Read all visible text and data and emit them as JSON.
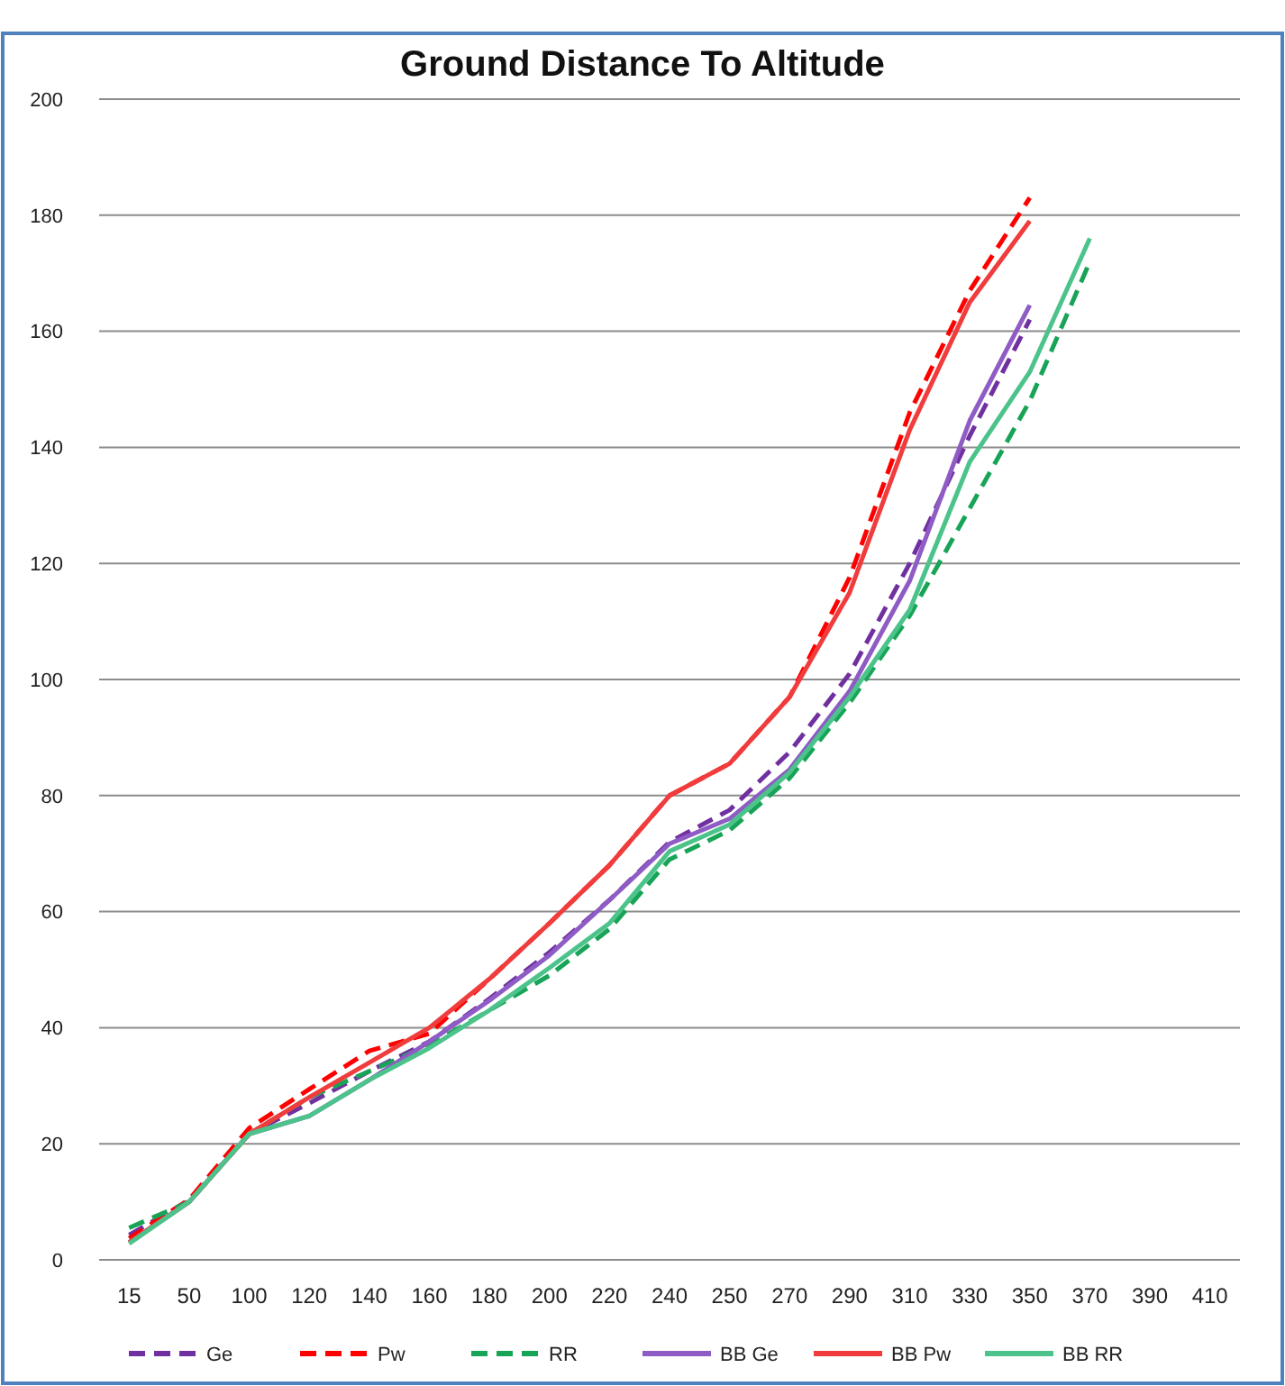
{
  "chart_data": {
    "type": "line",
    "title": "Ground Distance To Altitude",
    "categories": [
      "15",
      "50",
      "100",
      "120",
      "140",
      "160",
      "180",
      "200",
      "220",
      "240",
      "250",
      "270",
      "290",
      "310",
      "330",
      "350",
      "370",
      "390",
      "410"
    ],
    "ylim": [
      0,
      200
    ],
    "yticks": [
      0,
      20,
      40,
      60,
      80,
      100,
      120,
      140,
      160,
      180,
      200
    ],
    "grid": "y",
    "legend": "bottom",
    "marker": "none",
    "series": [
      {
        "name": "Ge",
        "color": "#7030a0",
        "line_style": "dashed",
        "values": [
          4.3,
          10.2,
          21.7,
          27,
          32.5,
          37.6,
          45,
          53,
          62,
          72,
          77.5,
          87.5,
          101,
          120,
          142,
          162,
          null,
          null,
          null
        ]
      },
      {
        "name": "Pw",
        "color": "#ff0000",
        "line_style": "dashed",
        "values": [
          3.7,
          10.4,
          22.7,
          29.4,
          36,
          39,
          48.4,
          58,
          68,
          80,
          85.5,
          97,
          117.6,
          146,
          167,
          183,
          null,
          null,
          null
        ]
      },
      {
        "name": "RR",
        "color": "#17a456",
        "line_style": "dashed",
        "values": [
          5.5,
          10,
          21.7,
          28,
          32.5,
          37,
          43,
          49,
          57,
          69,
          74,
          83,
          96,
          111,
          129.5,
          148,
          172,
          null,
          null
        ]
      },
      {
        "name": "BB Ge",
        "color": "#8e5cc4",
        "line_style": "solid",
        "values": [
          3,
          10,
          21.7,
          24.8,
          31,
          37.6,
          44.7,
          52.5,
          62,
          71.7,
          76,
          84.5,
          98,
          117,
          144.6,
          164.5,
          null,
          null,
          null
        ]
      },
      {
        "name": "BB Pw",
        "color": "#f03c3c",
        "line_style": "solid",
        "values": [
          3,
          10,
          21.7,
          28,
          34,
          40,
          48.4,
          58,
          68,
          80,
          85.5,
          97,
          115,
          143,
          165,
          179,
          null,
          null,
          null
        ]
      },
      {
        "name": "BB RR",
        "color": "#4cc38a",
        "line_style": "solid",
        "values": [
          2.8,
          10,
          21.7,
          24.8,
          31,
          36.5,
          43,
          50.3,
          58,
          70.4,
          75,
          84,
          97,
          112,
          137.5,
          153,
          176,
          null,
          null
        ]
      }
    ]
  }
}
